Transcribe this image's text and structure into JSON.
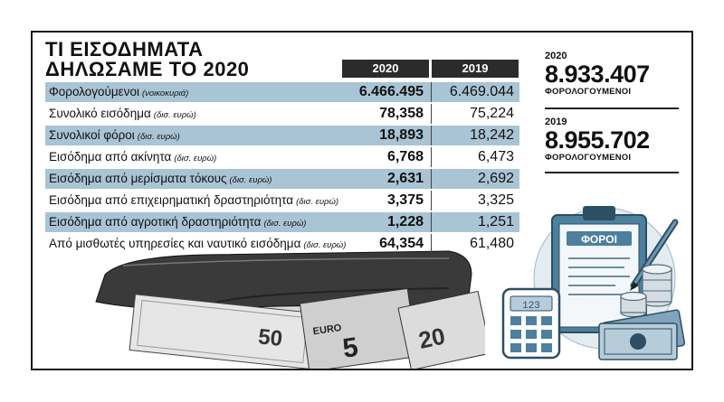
{
  "title": {
    "line1": "ΤΙ ΕΙΣΟΔΗΜΑΤΑ",
    "line2": "ΔΗΛΩΣΑΜΕ ΤΟ 2020"
  },
  "columns": [
    "2020",
    "2019"
  ],
  "rows": [
    {
      "label": "Φορολογούμενοι",
      "unit": "(νοικοκυριά)",
      "v2020": "6.466.495",
      "v2019": "6.469.044"
    },
    {
      "label": "Συνολικό εισόδημα",
      "unit": "(δισ. ευρώ)",
      "v2020": "78,358",
      "v2019": "75,224"
    },
    {
      "label": "Συνολικοί φόροι",
      "unit": "(δισ. ευρώ)",
      "v2020": "18,893",
      "v2019": "18,242"
    },
    {
      "label": "Εισόδημα από ακίνητα",
      "unit": "(δισ. ευρώ)",
      "v2020": "6,768",
      "v2019": "6,473"
    },
    {
      "label": "Εισόδημα από μερίσματα τόκους",
      "unit": "(δισ. ευρώ)",
      "v2020": "2,631",
      "v2019": "2,692"
    },
    {
      "label": "Εισόδημα από επιχειρηματική δραστηριότητα",
      "unit": "(δισ. ευρώ)",
      "v2020": "3,375",
      "v2019": "3,325"
    },
    {
      "label": "Εισόδημα από αγροτική δραστηριότητα",
      "unit": "(δισ. ευρώ)",
      "v2020": "1,228",
      "v2019": "1,251"
    },
    {
      "label": "Από μισθωτές υπηρεσίες και ναυτικό εισόδημα",
      "unit": "(δισ. ευρώ)",
      "v2020": "64,354",
      "v2019": "61,480"
    }
  ],
  "stats": [
    {
      "year": "2020",
      "value": "8.933.407",
      "caption": "ΦΟΡΟΛΟΓΟΥΜΕΝΟΙ"
    },
    {
      "year": "2019",
      "value": "8.955.702",
      "caption": "ΦΟΡΟΛΟΓΟΥΜΕΝΟΙ"
    }
  ],
  "illustration": {
    "clipboard_label": "ΦΟΡΟΙ",
    "calculator_display": "123",
    "banknote_labels": [
      "50",
      "EURO",
      "5",
      "20"
    ]
  },
  "colors": {
    "row_highlight": "#a9c4d4",
    "header_bg": "#2b2b2b",
    "clipboard_accent": "#4d7f9e"
  }
}
